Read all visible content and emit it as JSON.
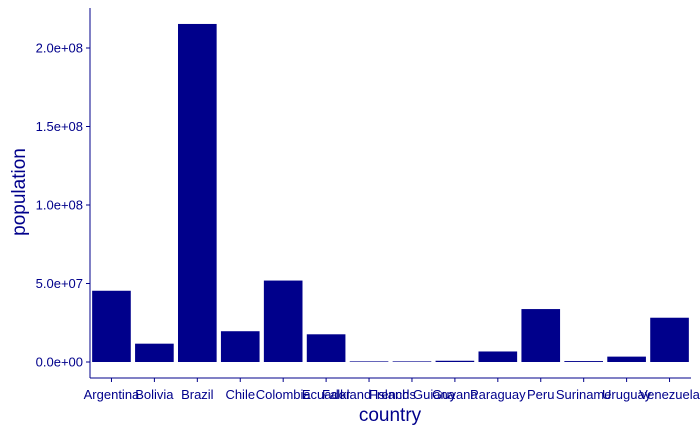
{
  "chart_data": {
    "type": "bar",
    "xlabel": "country",
    "ylabel": "population",
    "categories": [
      "Argentina",
      "Bolivia",
      "Brazil",
      "Chile",
      "Colombia",
      "Ecuador",
      "Falkland Islands",
      "French Guiana",
      "Guyana",
      "Paraguay",
      "Peru",
      "Suriname",
      "Uruguay",
      "Venezuela"
    ],
    "values": [
      45376763,
      11673029,
      215313498,
      19603733,
      51874024,
      17643060,
      3662,
      294071,
      786559,
      6703799,
      33715471,
      586634,
      3426260,
      28199867
    ],
    "ylim": [
      0,
      225000000
    ],
    "yticks": [
      0,
      50000000,
      100000000,
      150000000,
      200000000
    ],
    "ytick_labels": [
      "0.0e+00",
      "5.0e+07",
      "1.0e+08",
      "1.5e+08",
      "2.0e+08"
    ],
    "bar_color": "#00008B",
    "axis_color": "#00008B",
    "grid": false,
    "legend": "none"
  }
}
